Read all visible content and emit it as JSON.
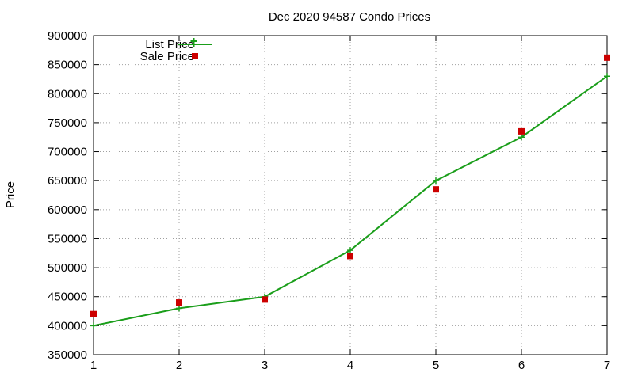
{
  "chart_data": {
    "type": "line",
    "title": "Dec 2020 94587 Condo Prices",
    "xlabel": "",
    "ylabel": "Price",
    "x": [
      1,
      2,
      3,
      4,
      5,
      6,
      7
    ],
    "xlim": [
      1,
      7
    ],
    "ylim": [
      350000,
      900000
    ],
    "xticks": [
      "1",
      "2",
      "3",
      "4",
      "5",
      "6",
      "7"
    ],
    "yticks": [
      "350000",
      "400000",
      "450000",
      "500000",
      "550000",
      "600000",
      "650000",
      "700000",
      "750000",
      "800000",
      "850000",
      "900000"
    ],
    "grid": true,
    "legend_position": "top-left",
    "series": [
      {
        "name": "List Price",
        "style": "line+cross-markers",
        "color": "#1a9e1a",
        "values": [
          400000,
          430000,
          450000,
          530000,
          650000,
          725000,
          830000
        ]
      },
      {
        "name": "Sale Price",
        "style": "square-markers",
        "color": "#cc0000",
        "values": [
          420000,
          440000,
          445000,
          520000,
          635000,
          735000,
          862000
        ]
      }
    ]
  }
}
